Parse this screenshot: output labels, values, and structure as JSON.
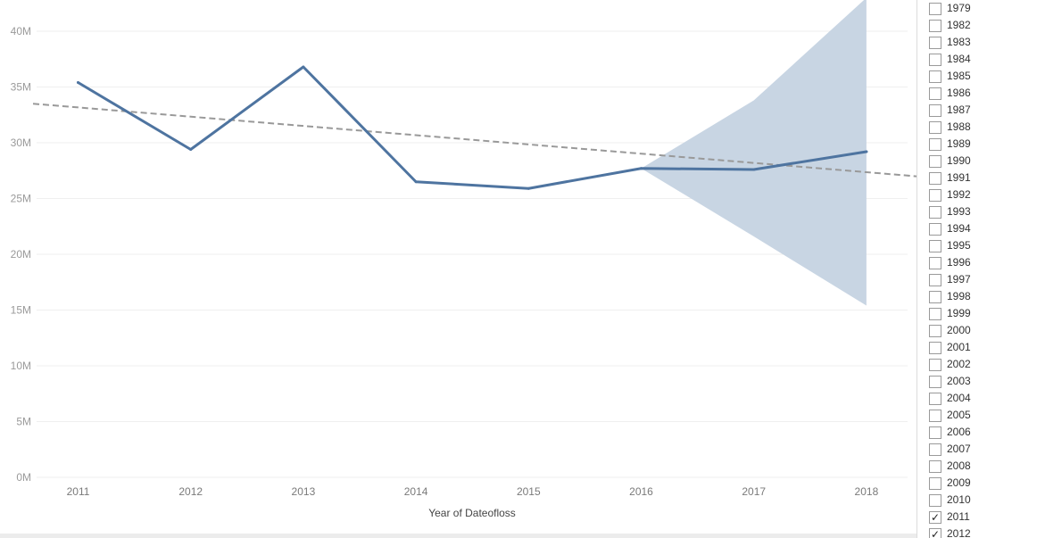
{
  "chart_data": {
    "type": "line",
    "xlabel": "Year of Dateofloss",
    "ylabel": "",
    "categories": [
      "2011",
      "2012",
      "2013",
      "2014",
      "2015",
      "2016",
      "2017",
      "2018"
    ],
    "y_tick_labels": [
      "0M",
      "5M",
      "10M",
      "15M",
      "20M",
      "25M",
      "30M",
      "35M",
      "40M"
    ],
    "ylim": [
      0,
      43000000
    ],
    "grid": true,
    "series": [
      {
        "values": [
          35400000,
          29400000,
          36800000,
          26500000,
          25900000,
          27700000,
          27600000,
          29200000
        ],
        "color": "#4e74a0"
      }
    ],
    "trend_line": {
      "x_start": 2010.6,
      "y_start": 33500000,
      "x_end": 2019.4,
      "y_end": 26200000,
      "color": "#999999",
      "style": "dashed"
    },
    "forecast_band": {
      "x": [
        "2016",
        "2017",
        "2018"
      ],
      "upper": [
        27700000,
        33800000,
        43000000
      ],
      "lower": [
        27700000,
        21600000,
        15400000
      ],
      "color": "#c8d5e3"
    }
  },
  "filter": {
    "items": [
      {
        "label": "1979",
        "checked": false
      },
      {
        "label": "1982",
        "checked": false
      },
      {
        "label": "1983",
        "checked": false
      },
      {
        "label": "1984",
        "checked": false
      },
      {
        "label": "1985",
        "checked": false
      },
      {
        "label": "1986",
        "checked": false
      },
      {
        "label": "1987",
        "checked": false
      },
      {
        "label": "1988",
        "checked": false
      },
      {
        "label": "1989",
        "checked": false
      },
      {
        "label": "1990",
        "checked": false
      },
      {
        "label": "1991",
        "checked": false
      },
      {
        "label": "1992",
        "checked": false
      },
      {
        "label": "1993",
        "checked": false
      },
      {
        "label": "1994",
        "checked": false
      },
      {
        "label": "1995",
        "checked": false
      },
      {
        "label": "1996",
        "checked": false
      },
      {
        "label": "1997",
        "checked": false
      },
      {
        "label": "1998",
        "checked": false
      },
      {
        "label": "1999",
        "checked": false
      },
      {
        "label": "2000",
        "checked": false
      },
      {
        "label": "2001",
        "checked": false
      },
      {
        "label": "2002",
        "checked": false
      },
      {
        "label": "2003",
        "checked": false
      },
      {
        "label": "2004",
        "checked": false
      },
      {
        "label": "2005",
        "checked": false
      },
      {
        "label": "2006",
        "checked": false
      },
      {
        "label": "2007",
        "checked": false
      },
      {
        "label": "2008",
        "checked": false
      },
      {
        "label": "2009",
        "checked": false
      },
      {
        "label": "2010",
        "checked": false
      },
      {
        "label": "2011",
        "checked": true
      },
      {
        "label": "2012",
        "checked": true
      }
    ],
    "check_glyph": "✓"
  }
}
